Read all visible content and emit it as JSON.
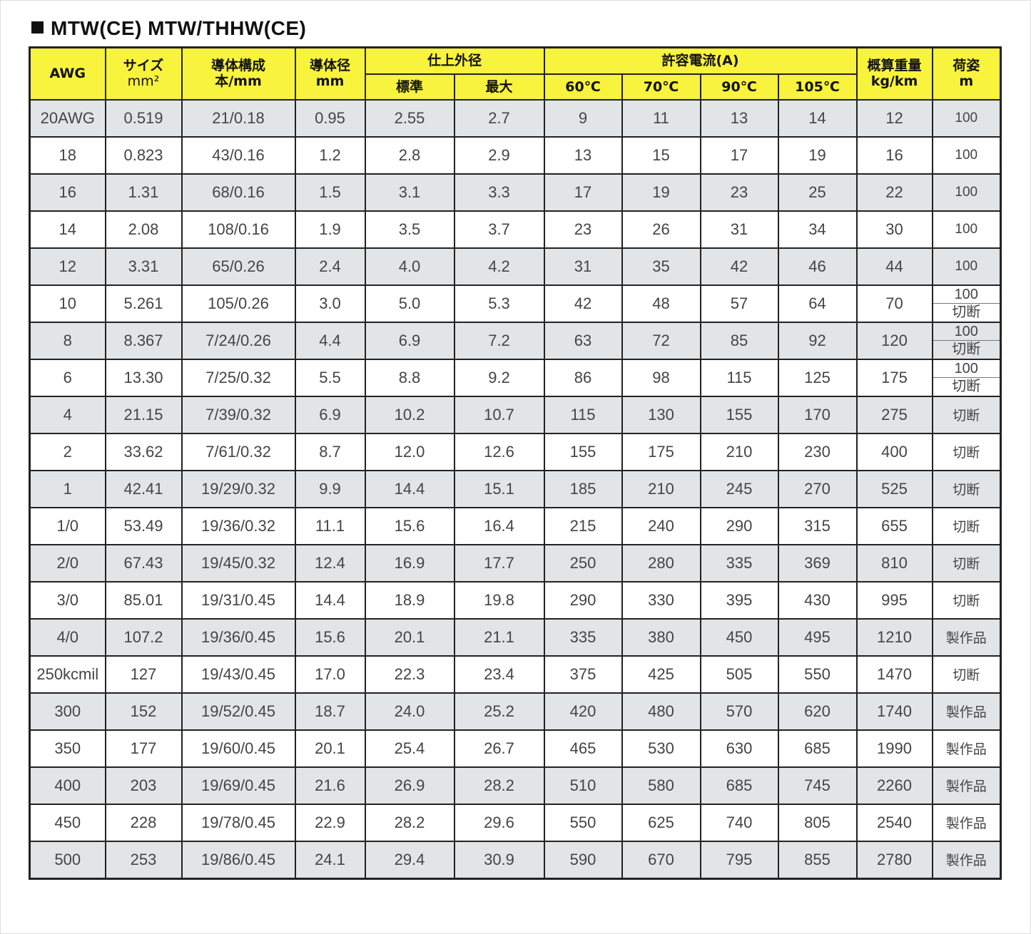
{
  "title": "MTW(CE)  MTW/THHW(CE)",
  "colors": {
    "header_bg": "#f8f33c",
    "stripe_bg": "#e2e5e7"
  },
  "headers": {
    "awg": "AWG",
    "size": "サイズ",
    "size_unit": "mm²",
    "conductor": "導体構成",
    "conductor_unit": "本/mm",
    "diameter": "導体径",
    "diameter_unit": "mm",
    "outer": "仕上外径",
    "outer_std": "標準",
    "outer_max": "最大",
    "ampacity": "許容電流(A)",
    "a60": "60℃",
    "a70": "70℃",
    "a90": "90℃",
    "a105": "105℃",
    "weight": "概算重量",
    "weight_unit": "kg/km",
    "pack": "荷姿",
    "pack_unit": "m"
  },
  "rows": [
    [
      "20AWG",
      "0.519",
      "21/0.18",
      "0.95",
      "2.55",
      "2.7",
      "9",
      "11",
      "13",
      "14",
      "12",
      [
        "100"
      ]
    ],
    [
      "18",
      "0.823",
      "43/0.16",
      "1.2",
      "2.8",
      "2.9",
      "13",
      "15",
      "17",
      "19",
      "16",
      [
        "100"
      ]
    ],
    [
      "16",
      "1.31",
      "68/0.16",
      "1.5",
      "3.1",
      "3.3",
      "17",
      "19",
      "23",
      "25",
      "22",
      [
        "100"
      ]
    ],
    [
      "14",
      "2.08",
      "108/0.16",
      "1.9",
      "3.5",
      "3.7",
      "23",
      "26",
      "31",
      "34",
      "30",
      [
        "100"
      ]
    ],
    [
      "12",
      "3.31",
      "65/0.26",
      "2.4",
      "4.0",
      "4.2",
      "31",
      "35",
      "42",
      "46",
      "44",
      [
        "100"
      ]
    ],
    [
      "10",
      "5.261",
      "105/0.26",
      "3.0",
      "5.0",
      "5.3",
      "42",
      "48",
      "57",
      "64",
      "70",
      [
        "100",
        "切断"
      ]
    ],
    [
      "8",
      "8.367",
      "7/24/0.26",
      "4.4",
      "6.9",
      "7.2",
      "63",
      "72",
      "85",
      "92",
      "120",
      [
        "100",
        "切断"
      ]
    ],
    [
      "6",
      "13.30",
      "7/25/0.32",
      "5.5",
      "8.8",
      "9.2",
      "86",
      "98",
      "115",
      "125",
      "175",
      [
        "100",
        "切断"
      ]
    ],
    [
      "4",
      "21.15",
      "7/39/0.32",
      "6.9",
      "10.2",
      "10.7",
      "115",
      "130",
      "155",
      "170",
      "275",
      [
        "切断"
      ]
    ],
    [
      "2",
      "33.62",
      "7/61/0.32",
      "8.7",
      "12.0",
      "12.6",
      "155",
      "175",
      "210",
      "230",
      "400",
      [
        "切断"
      ]
    ],
    [
      "1",
      "42.41",
      "19/29/0.32",
      "9.9",
      "14.4",
      "15.1",
      "185",
      "210",
      "245",
      "270",
      "525",
      [
        "切断"
      ]
    ],
    [
      "1/0",
      "53.49",
      "19/36/0.32",
      "11.1",
      "15.6",
      "16.4",
      "215",
      "240",
      "290",
      "315",
      "655",
      [
        "切断"
      ]
    ],
    [
      "2/0",
      "67.43",
      "19/45/0.32",
      "12.4",
      "16.9",
      "17.7",
      "250",
      "280",
      "335",
      "369",
      "810",
      [
        "切断"
      ]
    ],
    [
      "3/0",
      "85.01",
      "19/31/0.45",
      "14.4",
      "18.9",
      "19.8",
      "290",
      "330",
      "395",
      "430",
      "995",
      [
        "切断"
      ]
    ],
    [
      "4/0",
      "107.2",
      "19/36/0.45",
      "15.6",
      "20.1",
      "21.1",
      "335",
      "380",
      "450",
      "495",
      "1210",
      [
        "製作品"
      ]
    ],
    [
      "250kcmil",
      "127",
      "19/43/0.45",
      "17.0",
      "22.3",
      "23.4",
      "375",
      "425",
      "505",
      "550",
      "1470",
      [
        "切断"
      ]
    ],
    [
      "300",
      "152",
      "19/52/0.45",
      "18.7",
      "24.0",
      "25.2",
      "420",
      "480",
      "570",
      "620",
      "1740",
      [
        "製作品"
      ]
    ],
    [
      "350",
      "177",
      "19/60/0.45",
      "20.1",
      "25.4",
      "26.7",
      "465",
      "530",
      "630",
      "685",
      "1990",
      [
        "製作品"
      ]
    ],
    [
      "400",
      "203",
      "19/69/0.45",
      "21.6",
      "26.9",
      "28.2",
      "510",
      "580",
      "685",
      "745",
      "2260",
      [
        "製作品"
      ]
    ],
    [
      "450",
      "228",
      "19/78/0.45",
      "22.9",
      "28.2",
      "29.6",
      "550",
      "625",
      "740",
      "805",
      "2540",
      [
        "製作品"
      ]
    ],
    [
      "500",
      "253",
      "19/86/0.45",
      "24.1",
      "29.4",
      "30.9",
      "590",
      "670",
      "795",
      "855",
      "2780",
      [
        "製作品"
      ]
    ]
  ]
}
